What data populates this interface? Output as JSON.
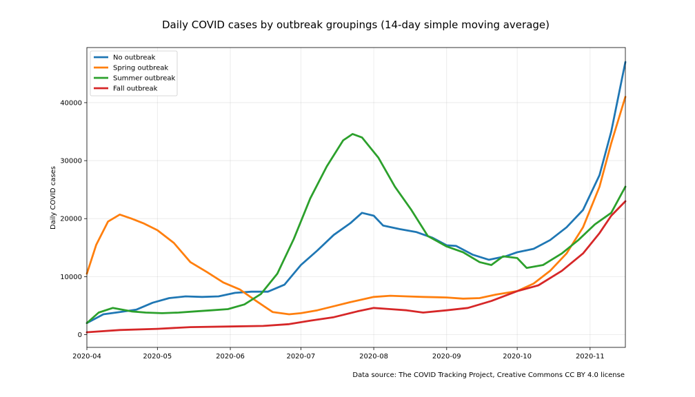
{
  "chart_data": {
    "type": "line",
    "title": "Daily COVID cases by outbreak groupings (14-day simple moving average)",
    "xlabel": "",
    "ylabel": "Daily COVID cases",
    "source_note": "Data source: The COVID Tracking Project, Creative Commons CC BY 4.0 license",
    "x_range": [
      "2020-04-01",
      "2020-11-16"
    ],
    "ylim": [
      -2200,
      49500
    ],
    "x_ticks": [
      "2020-04-01",
      "2020-05-01",
      "2020-06-01",
      "2020-07-01",
      "2020-08-01",
      "2020-09-01",
      "2020-10-01",
      "2020-11-01"
    ],
    "x_tick_labels": [
      "2020-04",
      "2020-05",
      "2020-06",
      "2020-07",
      "2020-08",
      "2020-09",
      "2020-10",
      "2020-11"
    ],
    "y_ticks": [
      0,
      10000,
      20000,
      30000,
      40000
    ],
    "grid": true,
    "legend_position": "top-left",
    "series": [
      {
        "name": "No outbreak",
        "color": "#1f77b4",
        "x": [
          "2020-04-01",
          "2020-04-08",
          "2020-04-15",
          "2020-04-22",
          "2020-04-29",
          "2020-05-06",
          "2020-05-13",
          "2020-05-20",
          "2020-05-27",
          "2020-06-03",
          "2020-06-10",
          "2020-06-17",
          "2020-06-24",
          "2020-07-01",
          "2020-07-08",
          "2020-07-15",
          "2020-07-22",
          "2020-07-27",
          "2020-08-01",
          "2020-08-05",
          "2020-08-12",
          "2020-08-19",
          "2020-08-26",
          "2020-09-01",
          "2020-09-05",
          "2020-09-12",
          "2020-09-19",
          "2020-09-26",
          "2020-10-01",
          "2020-10-08",
          "2020-10-15",
          "2020-10-22",
          "2020-10-29",
          "2020-11-05",
          "2020-11-10",
          "2020-11-16"
        ],
        "y": [
          2000,
          3500,
          3900,
          4300,
          5500,
          6300,
          6600,
          6500,
          6600,
          7200,
          7400,
          7400,
          8600,
          12000,
          14500,
          17200,
          19200,
          21000,
          20500,
          18800,
          18200,
          17700,
          16700,
          15400,
          15300,
          13800,
          12900,
          13500,
          14200,
          14800,
          16300,
          18500,
          21500,
          27500,
          35000,
          47000
        ]
      },
      {
        "name": "Spring outbreak",
        "color": "#ff7f0e",
        "x": [
          "2020-04-01",
          "2020-04-05",
          "2020-04-10",
          "2020-04-15",
          "2020-04-20",
          "2020-04-25",
          "2020-05-01",
          "2020-05-08",
          "2020-05-15",
          "2020-05-22",
          "2020-05-29",
          "2020-06-05",
          "2020-06-12",
          "2020-06-19",
          "2020-06-26",
          "2020-07-01",
          "2020-07-08",
          "2020-07-15",
          "2020-07-22",
          "2020-08-01",
          "2020-08-08",
          "2020-08-15",
          "2020-08-22",
          "2020-09-01",
          "2020-09-08",
          "2020-09-15",
          "2020-09-22",
          "2020-10-01",
          "2020-10-08",
          "2020-10-15",
          "2020-10-22",
          "2020-10-29",
          "2020-11-05",
          "2020-11-10",
          "2020-11-16"
        ],
        "y": [
          10500,
          15500,
          19500,
          20700,
          20000,
          19200,
          18000,
          15800,
          12500,
          10800,
          9000,
          7800,
          5800,
          3900,
          3500,
          3700,
          4200,
          4900,
          5600,
          6500,
          6700,
          6600,
          6500,
          6400,
          6200,
          6300,
          6900,
          7500,
          8800,
          11000,
          14000,
          18500,
          25500,
          33000,
          41000
        ]
      },
      {
        "name": "Summer outbreak",
        "color": "#2ca02c",
        "x": [
          "2020-04-01",
          "2020-04-06",
          "2020-04-12",
          "2020-04-20",
          "2020-04-26",
          "2020-05-03",
          "2020-05-10",
          "2020-05-17",
          "2020-05-24",
          "2020-05-31",
          "2020-06-07",
          "2020-06-14",
          "2020-06-21",
          "2020-06-28",
          "2020-07-05",
          "2020-07-12",
          "2020-07-19",
          "2020-07-23",
          "2020-07-27",
          "2020-08-03",
          "2020-08-10",
          "2020-08-17",
          "2020-08-24",
          "2020-09-01",
          "2020-09-08",
          "2020-09-15",
          "2020-09-20",
          "2020-09-25",
          "2020-10-01",
          "2020-10-05",
          "2020-10-12",
          "2020-10-20",
          "2020-10-27",
          "2020-11-03",
          "2020-11-10",
          "2020-11-16"
        ],
        "y": [
          2000,
          3800,
          4600,
          4000,
          3800,
          3700,
          3800,
          4000,
          4200,
          4400,
          5200,
          7000,
          10500,
          16500,
          23500,
          29000,
          33500,
          34600,
          34000,
          30500,
          25500,
          21500,
          17000,
          15200,
          14200,
          12500,
          12000,
          13500,
          13200,
          11500,
          12000,
          14000,
          16300,
          19000,
          21000,
          25500
        ]
      },
      {
        "name": "Fall outbreak",
        "color": "#d62728",
        "x": [
          "2020-04-01",
          "2020-04-15",
          "2020-05-01",
          "2020-05-15",
          "2020-06-01",
          "2020-06-15",
          "2020-06-26",
          "2020-07-05",
          "2020-07-15",
          "2020-07-25",
          "2020-08-01",
          "2020-08-08",
          "2020-08-15",
          "2020-08-22",
          "2020-09-01",
          "2020-09-10",
          "2020-09-20",
          "2020-10-01",
          "2020-10-10",
          "2020-10-20",
          "2020-10-29",
          "2020-11-05",
          "2020-11-10",
          "2020-11-16"
        ],
        "y": [
          400,
          800,
          1000,
          1300,
          1400,
          1500,
          1800,
          2400,
          3000,
          4000,
          4600,
          4400,
          4200,
          3800,
          4200,
          4600,
          5800,
          7500,
          8500,
          11000,
          14000,
          17500,
          20500,
          23000
        ]
      }
    ]
  }
}
